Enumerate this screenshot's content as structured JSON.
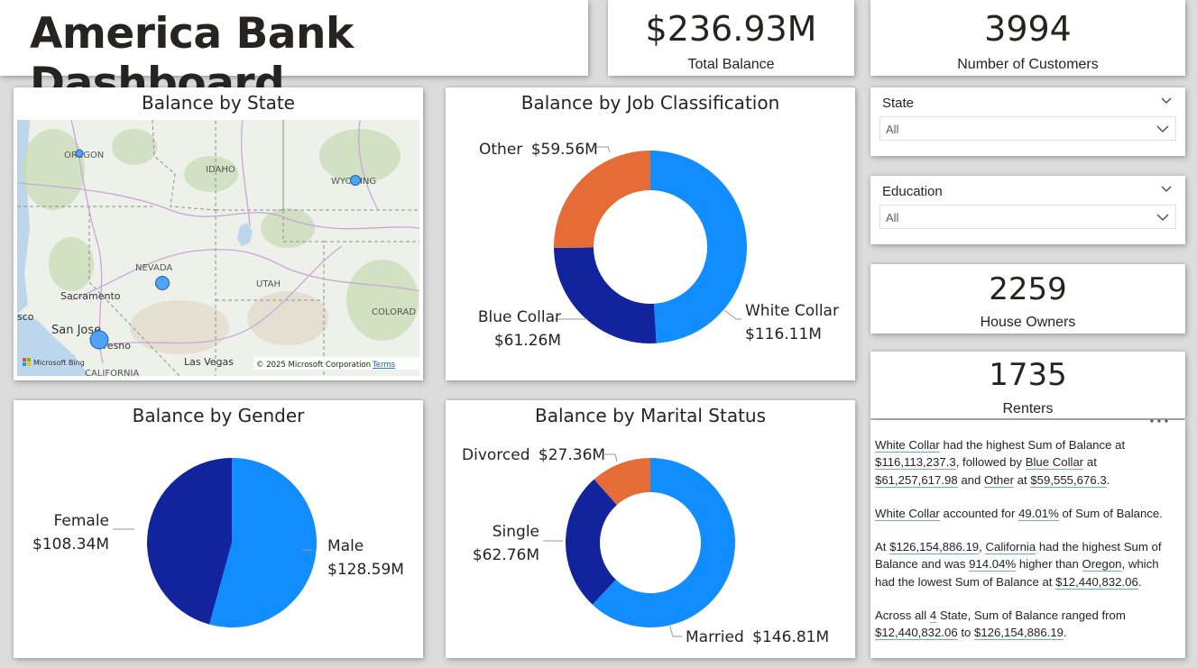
{
  "header": {
    "title": "America Bank Dashboard"
  },
  "kpis": {
    "total_balance": {
      "value": "$236.93M",
      "label": "Total Balance"
    },
    "customers": {
      "value": "3994",
      "label": "Number of Customers"
    },
    "house_owners": {
      "value": "2259",
      "label": "House Owners"
    },
    "renters": {
      "value": "1735",
      "label": "Renters"
    }
  },
  "slicers": {
    "state": {
      "label": "State",
      "value": "All"
    },
    "education": {
      "label": "Education",
      "value": "All"
    }
  },
  "map": {
    "title": "Balance by State",
    "labels": {
      "oregon": "OREGON",
      "idaho": "IDAHO",
      "wyoming": "WYOMING",
      "nevada": "NEVADA",
      "utah": "UTAH",
      "colorado": "COLORAD",
      "sacramento": "Sacramento",
      "san_jose": "San Jose",
      "fresno": "Fresno",
      "las_vegas": "Las Vegas",
      "california": "CALIFORNIA",
      "sco": "sco"
    },
    "bubble_states": [
      "Oregon",
      "Wyoming",
      "Nevada",
      "California"
    ],
    "attribution": "Microsoft Bing",
    "copyright": "© 2025 Microsoft Corporation",
    "terms": "Terms"
  },
  "colors": {
    "blue": "#118dff",
    "navy": "#12239e",
    "orange": "#e66c37",
    "bubble": "#4da3f5"
  },
  "charts": {
    "job": {
      "title": "Balance by Job Classification",
      "labels": [
        {
          "name": "Other",
          "amount": "$59.56M"
        },
        {
          "name": "Blue Collar",
          "amount": "$61.26M"
        },
        {
          "name": "White Collar",
          "amount": "$116.11M"
        }
      ]
    },
    "gender": {
      "title": "Balance by Gender",
      "labels": [
        {
          "name": "Female",
          "amount": "$108.34M"
        },
        {
          "name": "Male",
          "amount": "$128.59M"
        }
      ]
    },
    "marital": {
      "title": "Balance by Marital Status",
      "labels": [
        {
          "name": "Divorced",
          "amount": "$27.36M"
        },
        {
          "name": "Single",
          "amount": "$62.76M"
        },
        {
          "name": "Married",
          "amount": "$146.81M"
        }
      ]
    }
  },
  "chart_data": [
    {
      "type": "pie",
      "variant": "donut",
      "title": "Balance by Job Classification",
      "categories": [
        "White Collar",
        "Blue Collar",
        "Other"
      ],
      "values": [
        116.11,
        61.26,
        59.56
      ],
      "unit": "$M",
      "colors": [
        "#118dff",
        "#12239e",
        "#e66c37"
      ]
    },
    {
      "type": "pie",
      "title": "Balance by Gender",
      "categories": [
        "Male",
        "Female"
      ],
      "values": [
        128.59,
        108.34
      ],
      "unit": "$M",
      "colors": [
        "#118dff",
        "#12239e"
      ]
    },
    {
      "type": "pie",
      "variant": "donut",
      "title": "Balance by Marital Status",
      "categories": [
        "Married",
        "Single",
        "Divorced"
      ],
      "values": [
        146.81,
        62.76,
        27.36
      ],
      "unit": "$M",
      "colors": [
        "#118dff",
        "#12239e",
        "#e66c37"
      ]
    }
  ],
  "narrative": {
    "p1": {
      "a": "White Collar",
      "b": " had the highest Sum of Balance at ",
      "c": "$116,113,237.3",
      "d": ", followed by ",
      "e": "Blue Collar",
      "f": " at ",
      "g": "$61,257,617.98",
      "h": " and ",
      "i": "Other",
      "j": " at ",
      "k": "$59,555,676.3",
      "l": "."
    },
    "p2": {
      "a": "White Collar",
      "b": " accounted for ",
      "c": "49.01%",
      "d": " of Sum of Balance."
    },
    "p3": {
      "a": "At ",
      "b": "$126,154,886.19",
      "c": ", ",
      "d": "California",
      "e": " had the highest Sum of Balance and was ",
      "f": "914.04%",
      "g": " higher than ",
      "h": "Oregon",
      "i": ", which had the lowest Sum of Balance at ",
      "j": "$12,440,832.06",
      "k": "."
    },
    "p4": {
      "a": "Across all ",
      "b": "4",
      "c": " State",
      "d": ", Sum of Balance ranged from ",
      "e": "$12,440,832.06",
      "f": " to ",
      "g": "$126,154,886.19",
      "h": "."
    }
  }
}
